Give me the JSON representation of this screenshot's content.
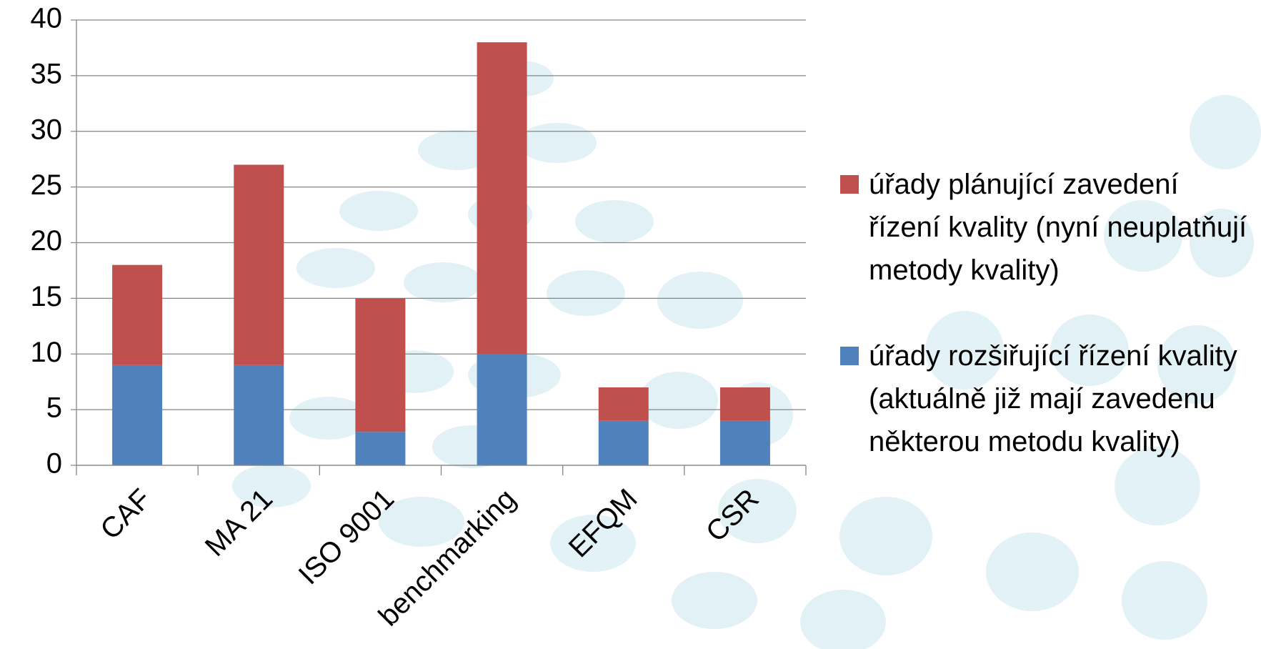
{
  "chart_data": {
    "type": "stacked_bar",
    "categories": [
      "CAF",
      "MA 21",
      "ISO 9001",
      "benchmarking",
      "EFQM",
      "CSR"
    ],
    "series": [
      {
        "name": "úřady rozšiřující řízení kvality (aktuálně již mají zavedenu některou metodu kvality)",
        "color": "#4f81bd",
        "values": [
          9,
          9,
          3,
          10,
          4,
          4
        ]
      },
      {
        "name": "úřady plánující zavedení řízení kvality (nyní neuplatňují metody kvality)",
        "color": "#c0504d",
        "values": [
          9,
          18,
          12,
          28,
          3,
          3
        ]
      }
    ],
    "ylim": [
      0,
      40
    ],
    "yticks": [
      0,
      5,
      10,
      15,
      20,
      25,
      30,
      35,
      40
    ],
    "grid": true,
    "legend": "right"
  }
}
